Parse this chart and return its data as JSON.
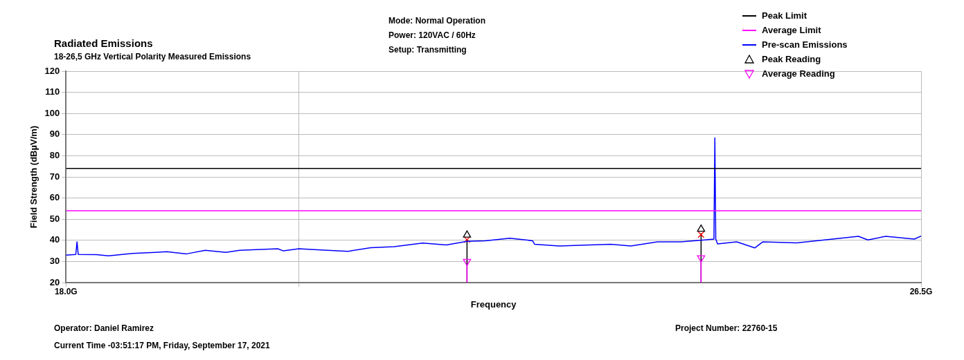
{
  "chart_data": {
    "type": "line",
    "title": "Radiated Emissions",
    "subtitle": "18-26,5 GHz Vertical Polarity Measured Emissions",
    "xlabel": "Frequency",
    "ylabel": "Field Strength (dBµV/m)",
    "annotations": [
      "Mode: Normal Operation",
      "Power: 120VAC / 60Hz",
      "Setup: Transmitting",
      "Operator: Daniel Ramirez",
      "Current Time -03:51:17 PM, Friday, September 17, 2021",
      "Project Number: 22760-15"
    ],
    "log": "x",
    "xlim": [
      18,
      26.5
    ],
    "xticks": [
      {
        "value": 18,
        "label": "18.0G"
      },
      {
        "value": 20,
        "label": null
      },
      {
        "value": 26.5,
        "label": "26.5G"
      }
    ],
    "ylim": [
      20,
      120
    ],
    "yticks": [
      20,
      30,
      40,
      50,
      60,
      70,
      80,
      90,
      100,
      110,
      120
    ],
    "grid": true,
    "legend": "top right",
    "series": [
      {
        "name": "Peak Limit",
        "color": "#000000",
        "marker": "none",
        "x": [
          18,
          26.5
        ],
        "values": [
          74,
          74
        ]
      },
      {
        "name": "Average Limit",
        "color": "#ff00ff",
        "marker": "none",
        "x": [
          18,
          26.5
        ],
        "values": [
          54,
          54
        ]
      },
      {
        "name": "Pre-scan Emissions",
        "color": "#0000ff",
        "marker": "none",
        "x": [
          18.0,
          18.08,
          18.09,
          18.1,
          18.25,
          18.35,
          18.55,
          18.74,
          18.84,
          19.01,
          19.17,
          19.35,
          19.47,
          19.81,
          19.86,
          20.0,
          20.23,
          20.45,
          20.66,
          20.88,
          21.15,
          21.38,
          21.58,
          21.76,
          22.0,
          22.23,
          22.25,
          22.5,
          22.81,
          23.03,
          23.24,
          23.52,
          23.77,
          24.03,
          24.13,
          24.14,
          24.15,
          24.17,
          24.38,
          24.58,
          24.67,
          25.05,
          25.46,
          25.76,
          25.87,
          26.08,
          26.42,
          26.5
        ],
        "values": [
          33,
          33.3,
          39.3,
          33.3,
          33.2,
          32.7,
          33.8,
          34.3,
          34.6,
          33.6,
          35.3,
          34.3,
          35.3,
          36,
          35,
          36,
          35.4,
          34.8,
          36.5,
          37,
          38.7,
          37.8,
          39.5,
          39.8,
          41,
          39.8,
          38.1,
          37.3,
          37.8,
          38.1,
          37.3,
          39.3,
          39.3,
          40.2,
          40.6,
          88.5,
          40.6,
          38.3,
          39.3,
          36.4,
          39.3,
          38.8,
          40.6,
          41.9,
          40.2,
          41.9,
          40.6,
          42
        ]
      },
      {
        "name": "Peak Reading",
        "type": "lollipop",
        "color": "#000000",
        "marker": "triangle",
        "x": [
          21.58,
          23.99
        ],
        "values": [
          42.5,
          45.3
        ]
      },
      {
        "name": "Average Reading",
        "type": "lollipop",
        "color": "#ff00ff",
        "marker": "triangle-down",
        "x": [
          21.58,
          23.99
        ],
        "values": [
          30,
          31.7
        ]
      },
      {
        "type": "scatter",
        "color": "#ff0000",
        "marker": "cross",
        "x": [
          21.58,
          23.99
        ],
        "values": [
          40.3,
          42.7
        ]
      }
    ]
  }
}
